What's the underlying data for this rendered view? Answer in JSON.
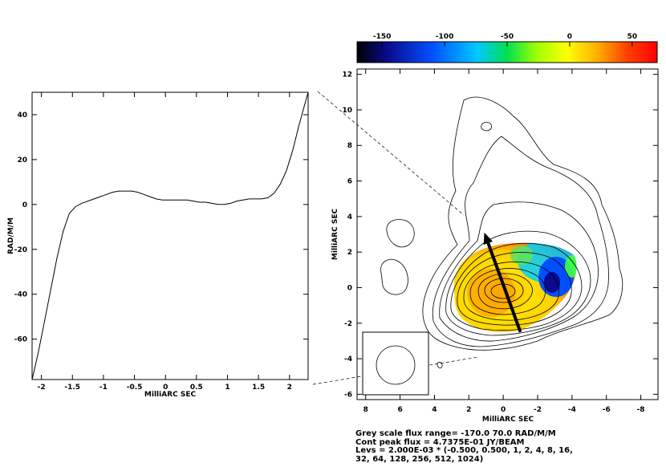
{
  "chart_data": [
    {
      "type": "line",
      "xlabel": "MilliARC SEC",
      "ylabel": "RAD/M/M",
      "xlim": [
        -2.15,
        2.3
      ],
      "ylim": [
        -78,
        50
      ],
      "xticks": [
        -2.0,
        -1.5,
        -1.0,
        -0.5,
        0.0,
        0.5,
        1.0,
        1.5,
        2.0
      ],
      "yticks": [
        -60,
        -40,
        -20,
        0,
        20,
        40
      ],
      "x": [
        -2.15,
        -2.05,
        -1.95,
        -1.85,
        -1.75,
        -1.65,
        -1.55,
        -1.45,
        -1.35,
        -1.25,
        -1.15,
        -1.05,
        -0.95,
        -0.85,
        -0.75,
        -0.65,
        -0.55,
        -0.45,
        -0.35,
        -0.25,
        -0.15,
        -0.05,
        0.05,
        0.15,
        0.25,
        0.35,
        0.45,
        0.55,
        0.65,
        0.75,
        0.85,
        0.95,
        1.05,
        1.15,
        1.25,
        1.35,
        1.45,
        1.55,
        1.65,
        1.75,
        1.85,
        1.95,
        2.05,
        2.15,
        2.25,
        2.3
      ],
      "y": [
        -78,
        -66,
        -52,
        -38,
        -24,
        -12,
        -4,
        -1,
        0.5,
        1.5,
        2.5,
        3.5,
        4.5,
        5.5,
        6.0,
        6.0,
        6.0,
        5.5,
        4.5,
        3.5,
        2.5,
        2.0,
        2.0,
        2.0,
        2.0,
        2.0,
        1.5,
        1.0,
        1.0,
        0.5,
        0.0,
        0.0,
        0.5,
        1.5,
        2.0,
        2.5,
        2.5,
        2.5,
        3.0,
        5.0,
        9.0,
        15.0,
        24.0,
        35.0,
        45.0,
        50.0
      ]
    },
    {
      "type": "heatmap",
      "xlabel": "MilliARC SEC",
      "ylabel": "MilliARC SEC",
      "xlim": [
        8.5,
        -9
      ],
      "ylim": [
        -6.3,
        12.3
      ],
      "xticks": [
        8,
        6,
        4,
        2,
        0,
        -2,
        -4,
        -6,
        -8
      ],
      "yticks": [
        -6,
        -4,
        -2,
        0,
        2,
        4,
        6,
        8,
        10,
        12
      ],
      "colorbar": {
        "range": [
          -170,
          70
        ],
        "ticks": [
          -150,
          -100,
          -50,
          0,
          50
        ],
        "colors": [
          "#000000",
          "#0a0a8c",
          "#0050ff",
          "#00c8ff",
          "#00e050",
          "#a0ff00",
          "#ffff00",
          "#ffb000",
          "#ff4000",
          "#ff0000"
        ]
      },
      "contour_levels": "2.000E-03 * (-0.500, 0.500, 1, 2, 4, 8, 16, 32, 64, 128, 256, 512, 1024)",
      "arrow": {
        "from": [
          -1.0,
          -2.5
        ],
        "to": [
          1.1,
          3.1
        ]
      },
      "caption": [
        "Grey scale flux range= -170.0 70.0 RAD/M/M",
        "Cont peak flux =  4.7375E-01 JY/BEAM",
        "Levs = 2.000E-03 * (-0.500, 0.500, 1, 2, 4, 8, 16,",
        "32, 64, 128, 256, 512, 1024)"
      ]
    }
  ]
}
